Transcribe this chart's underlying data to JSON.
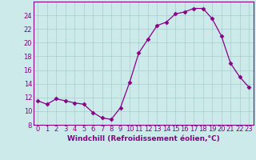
{
  "x": [
    0,
    1,
    2,
    3,
    4,
    5,
    6,
    7,
    8,
    9,
    10,
    11,
    12,
    13,
    14,
    15,
    16,
    17,
    18,
    19,
    20,
    21,
    22,
    23
  ],
  "y": [
    11.5,
    11.0,
    11.8,
    11.5,
    11.2,
    11.0,
    9.8,
    9.0,
    8.8,
    10.5,
    14.2,
    18.5,
    20.5,
    22.5,
    23.0,
    24.2,
    24.5,
    25.0,
    25.0,
    23.5,
    21.0,
    17.0,
    15.0,
    13.5
  ],
  "line_color": "#880088",
  "marker": "D",
  "marker_size": 2.5,
  "bg_color": "#cceaea",
  "grid_color": "#aacccc",
  "xlabel": "Windchill (Refroidissement éolien,°C)",
  "xlabel_color": "#880088",
  "tick_color": "#880088",
  "spine_color": "#880088",
  "ylim": [
    8,
    26
  ],
  "xlim": [
    -0.5,
    23.5
  ],
  "yticks": [
    8,
    10,
    12,
    14,
    16,
    18,
    20,
    22,
    24
  ],
  "xticks": [
    0,
    1,
    2,
    3,
    4,
    5,
    6,
    7,
    8,
    9,
    10,
    11,
    12,
    13,
    14,
    15,
    16,
    17,
    18,
    19,
    20,
    21,
    22,
    23
  ],
  "xlabel_fontsize": 6.5,
  "tick_fontsize": 6.0
}
